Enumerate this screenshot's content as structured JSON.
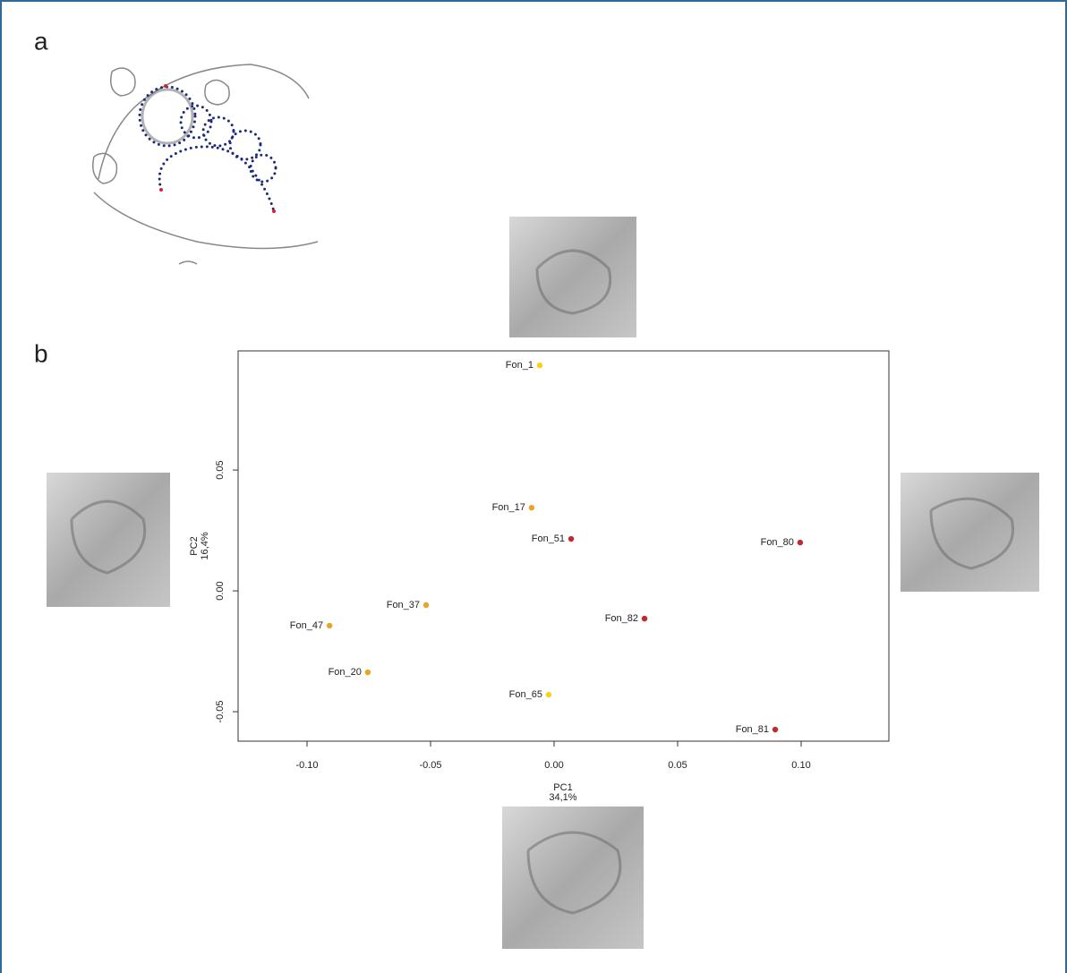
{
  "panels": [
    "a",
    "b"
  ],
  "chart_data": {
    "type": "scatter",
    "x_label": {
      "title": "PC1",
      "variance": "34,1%"
    },
    "y_label": {
      "title": "PC2",
      "variance": "16,4%"
    },
    "point_labels": [
      "Fon_1",
      "Fon_17",
      "Fon_51",
      "Fon_80",
      "Fon_37",
      "Fon_47",
      "Fon_82",
      "Fon_20",
      "Fon_65",
      "Fon_81"
    ],
    "x": [
      -0.0058,
      -0.0091,
      0.0069,
      0.0996,
      -0.0518,
      -0.0909,
      0.0366,
      -0.0754,
      -0.0022,
      0.0895
    ],
    "values": [
      0.0933,
      0.0344,
      0.0215,
      0.02,
      -0.0059,
      -0.0144,
      -0.0115,
      -0.0337,
      -0.043,
      -0.0574
    ],
    "colors": [
      "#f5d31c",
      "#e9a424",
      "#c3282b",
      "#c3282b",
      "#e9a424",
      "#e9a424",
      "#c3282b",
      "#e9a424",
      "#f5d31c",
      "#c3282b"
    ],
    "xlim": [
      -0.1279,
      0.1355
    ],
    "ylim": [
      -0.0622,
      0.0993
    ],
    "xticks": [
      {
        "value": -0.1,
        "label": "-0.10"
      },
      {
        "value": -0.05,
        "label": "-0.05"
      },
      {
        "value": 0,
        "label": "0.00"
      },
      {
        "value": 0.05,
        "label": "0.05"
      },
      {
        "value": 0.1,
        "label": "0.10"
      }
    ],
    "yticks": [
      {
        "value": -0.05,
        "label": "-0.05"
      },
      {
        "value": 0,
        "label": "0.00"
      },
      {
        "value": 0.05,
        "label": "0.05"
      }
    ]
  }
}
